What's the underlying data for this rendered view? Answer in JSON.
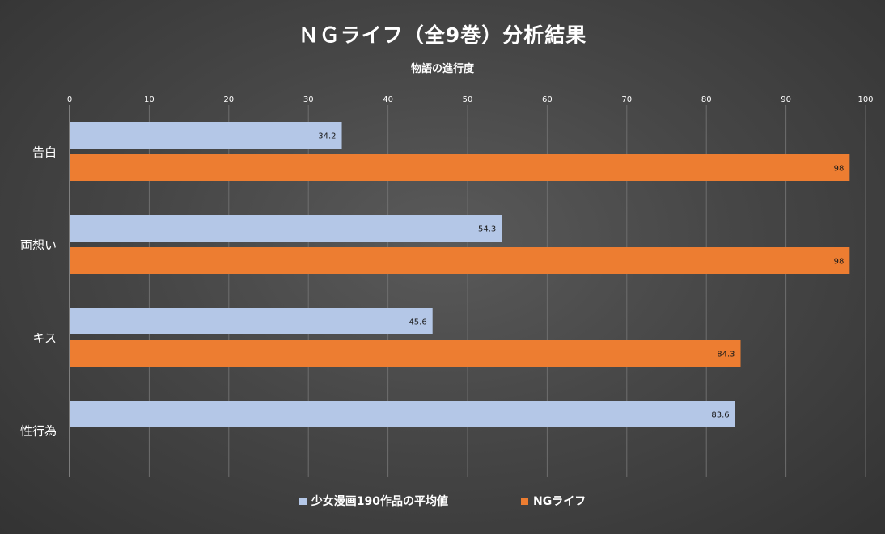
{
  "chart_data": {
    "type": "bar",
    "orientation": "horizontal",
    "title": "ＮＧライフ（全9巻）分析結果",
    "xlabel": "物語の進行度",
    "xlim": [
      0,
      100
    ],
    "xticks": [
      0,
      10,
      20,
      30,
      40,
      50,
      60,
      70,
      80,
      90,
      100
    ],
    "categories": [
      "告白",
      "両想い",
      "キス",
      "性行為"
    ],
    "series": [
      {
        "name": "少女漫画190作品の平均値",
        "color": "#B4C7E7",
        "values": [
          34.2,
          54.3,
          45.6,
          83.6
        ]
      },
      {
        "name": "NGライフ",
        "color": "#ED7D31",
        "values": [
          98,
          98,
          84.3,
          null
        ]
      }
    ],
    "grid": true,
    "legend_position": "bottom",
    "data_labels": true
  }
}
